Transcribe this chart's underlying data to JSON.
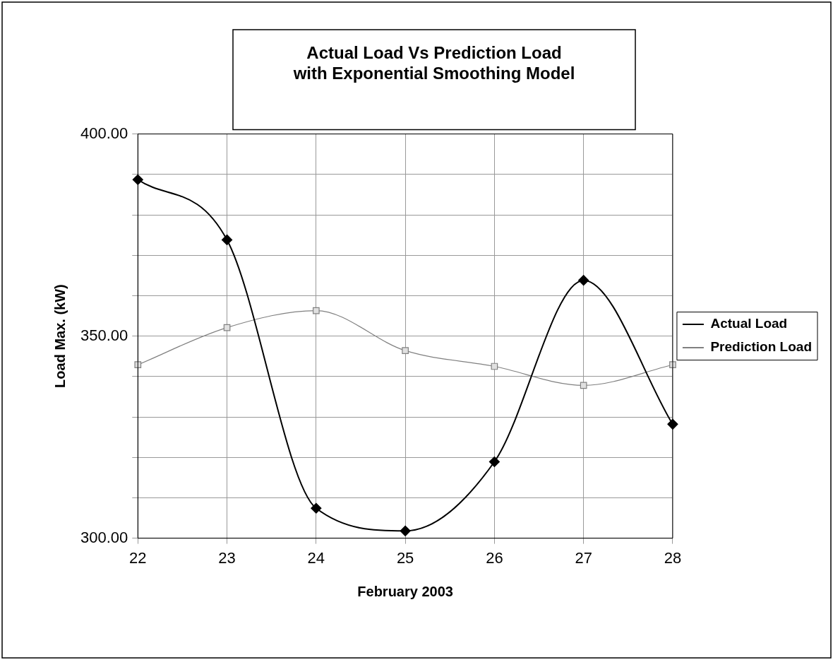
{
  "chart_data": {
    "type": "line",
    "title": [
      "Actual Load Vs Prediction Load",
      "with Exponential Smoothing Model"
    ],
    "xlabel": "February 2003",
    "ylabel": "Load Max. (kW)",
    "categories": [
      "22",
      "23",
      "24",
      "25",
      "26",
      "27",
      "28"
    ],
    "series": [
      {
        "name": "Actual Load",
        "color": "#000000",
        "marker": "diamond",
        "values": [
          388.7,
          373.8,
          307.4,
          301.8,
          318.9,
          363.8,
          328.2
        ]
      },
      {
        "name": "Prediction Load",
        "color": "#808080",
        "marker": "square",
        "values": [
          342.9,
          352.1,
          356.3,
          346.4,
          342.5,
          337.8,
          342.9
        ]
      }
    ],
    "ylim": [
      300,
      400
    ],
    "yticks": [
      {
        "value": 300,
        "label": "300.00"
      },
      {
        "value": 310,
        "label": null
      },
      {
        "value": 320,
        "label": null
      },
      {
        "value": 330,
        "label": null
      },
      {
        "value": 340,
        "label": null
      },
      {
        "value": 350,
        "label": "350.00"
      },
      {
        "value": 360,
        "label": null
      },
      {
        "value": 370,
        "label": null
      },
      {
        "value": 380,
        "label": null
      },
      {
        "value": 390,
        "label": null
      },
      {
        "value": 400,
        "label": "400.00"
      }
    ],
    "grid": true,
    "legend": "right",
    "line_style": "solid"
  }
}
